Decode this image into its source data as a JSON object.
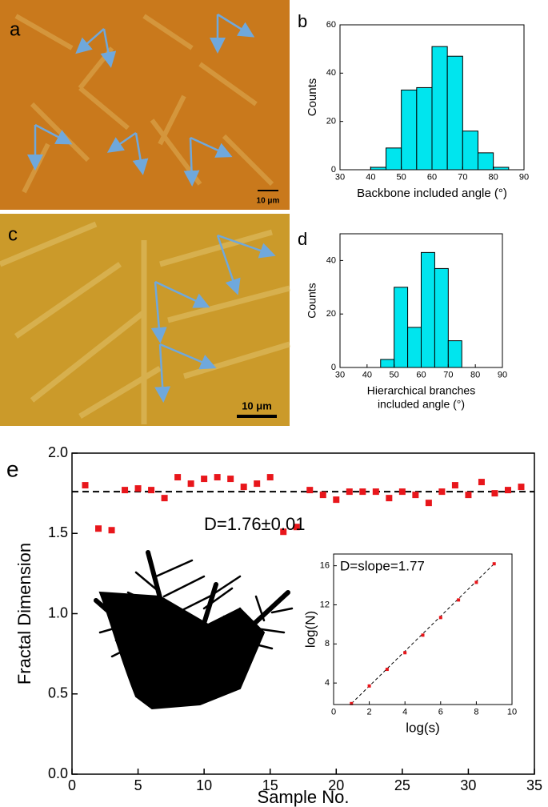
{
  "images": [
    {
      "panel_label": "a",
      "scale_bar": "10 μm"
    },
    {
      "panel_label": "c",
      "scale_bar": "10 μm"
    }
  ],
  "chart_data": [
    {
      "type": "histogram",
      "panel_label": "b",
      "xlabel": "Backbone included angle (°)",
      "ylabel": "Counts",
      "bins": [
        40,
        45,
        50,
        55,
        60,
        65,
        70,
        75,
        80,
        85
      ],
      "values": [
        1,
        9,
        33,
        34,
        51,
        47,
        16,
        7,
        1
      ],
      "color": "#00e5ee",
      "xlim": [
        30,
        90
      ],
      "xticks": [
        30,
        40,
        50,
        60,
        70,
        80,
        90
      ],
      "ylim": [
        0,
        60
      ],
      "yticks": [
        0,
        20,
        40,
        60
      ]
    },
    {
      "type": "histogram",
      "panel_label": "d",
      "xlabel": [
        "Hierarchical branches",
        "included angle (°)"
      ],
      "ylabel": "Counts",
      "bins": [
        45,
        50,
        55,
        60,
        65,
        70,
        75
      ],
      "values": [
        3,
        30,
        15,
        43,
        37,
        10
      ],
      "color": "#00e5ee",
      "xlim": [
        30,
        90
      ],
      "xticks": [
        30,
        40,
        50,
        60,
        70,
        80,
        90
      ],
      "ylim": [
        0,
        50
      ],
      "yticks": [
        0,
        20,
        40
      ]
    },
    {
      "type": "scatter",
      "panel_label": "e",
      "xlabel": "Sample No.",
      "ylabel": "Fractal Dimension",
      "annotation": "D=1.76±0.01",
      "x": [
        1,
        2,
        3,
        4,
        5,
        6,
        7,
        8,
        9,
        10,
        11,
        12,
        13,
        14,
        15,
        16,
        17,
        18,
        19,
        20,
        21,
        22,
        23,
        24,
        25,
        26,
        27,
        28,
        29,
        30,
        31,
        32,
        33,
        34
      ],
      "values": [
        1.8,
        1.53,
        1.52,
        1.77,
        1.78,
        1.77,
        1.72,
        1.85,
        1.81,
        1.84,
        1.85,
        1.84,
        1.79,
        1.81,
        1.85,
        1.51,
        1.54,
        1.77,
        1.74,
        1.71,
        1.76,
        1.76,
        1.76,
        1.72,
        1.76,
        1.74,
        1.69,
        1.76,
        1.8,
        1.74,
        1.82,
        1.75,
        1.77,
        1.79
      ],
      "color": "#e8161b",
      "hline": 1.76,
      "xlim": [
        0,
        35
      ],
      "xticks": [
        0,
        5,
        10,
        15,
        20,
        25,
        30,
        35
      ],
      "ylim": [
        0,
        2
      ],
      "yticks": [
        {
          "value": 0,
          "label": "0.0"
        },
        0.5,
        {
          "value": 1,
          "label": "1.0"
        },
        1.5,
        {
          "value": 2,
          "label": "2.0"
        }
      ],
      "inset": {
        "type": "scatter",
        "title": "D=slope=1.77",
        "xlabel": "log(s)",
        "ylabel": "log(N)",
        "x": [
          1,
          2,
          3,
          4,
          5,
          6,
          7,
          8,
          9
        ],
        "values": [
          1.9,
          3.7,
          5.4,
          7.1,
          8.9,
          10.7,
          12.5,
          14.3,
          16.2
        ],
        "color": "#e8161b",
        "xlim": [
          0,
          10
        ],
        "xticks": [
          0,
          2,
          4,
          6,
          8,
          10
        ],
        "ylim": [
          1.8,
          17.2
        ],
        "yticks": [
          4,
          8,
          12,
          16
        ]
      }
    }
  ]
}
